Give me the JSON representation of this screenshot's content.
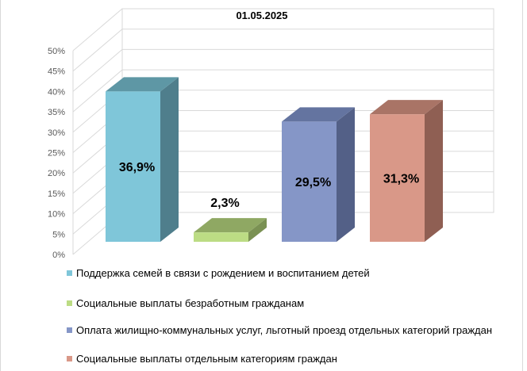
{
  "chart_data": {
    "type": "bar",
    "title": "01.05.2025",
    "categories": [
      "Поддержка семей в связи с рождением и воспитанием детей",
      "Социальные выплаты безработным гражданам",
      "Оплата жилищно-коммунальных услуг, льготный проезд отдельных категорий граждан",
      "Социальные выплаты отдельным категориям граждан"
    ],
    "values": [
      36.9,
      2.3,
      29.5,
      31.3
    ],
    "data_labels": [
      "36,9%",
      "2,3%",
      "29,5%",
      "31,3%"
    ],
    "colors": {
      "front": [
        "#7fc6d9",
        "#bcdc84",
        "#8596c7",
        "#d99888"
      ],
      "top": [
        "#5e97a5",
        "#8fa863",
        "#6474a0",
        "#a97466"
      ],
      "side": [
        "#4f7e8c",
        "#7a9153",
        "#536087",
        "#8f5f53"
      ]
    },
    "ylim": [
      0,
      50
    ],
    "yticks": [
      "0%",
      "5%",
      "10%",
      "15%",
      "20%",
      "25%",
      "30%",
      "35%",
      "40%",
      "45%",
      "50%"
    ],
    "grid": true,
    "legend_position": "bottom"
  }
}
